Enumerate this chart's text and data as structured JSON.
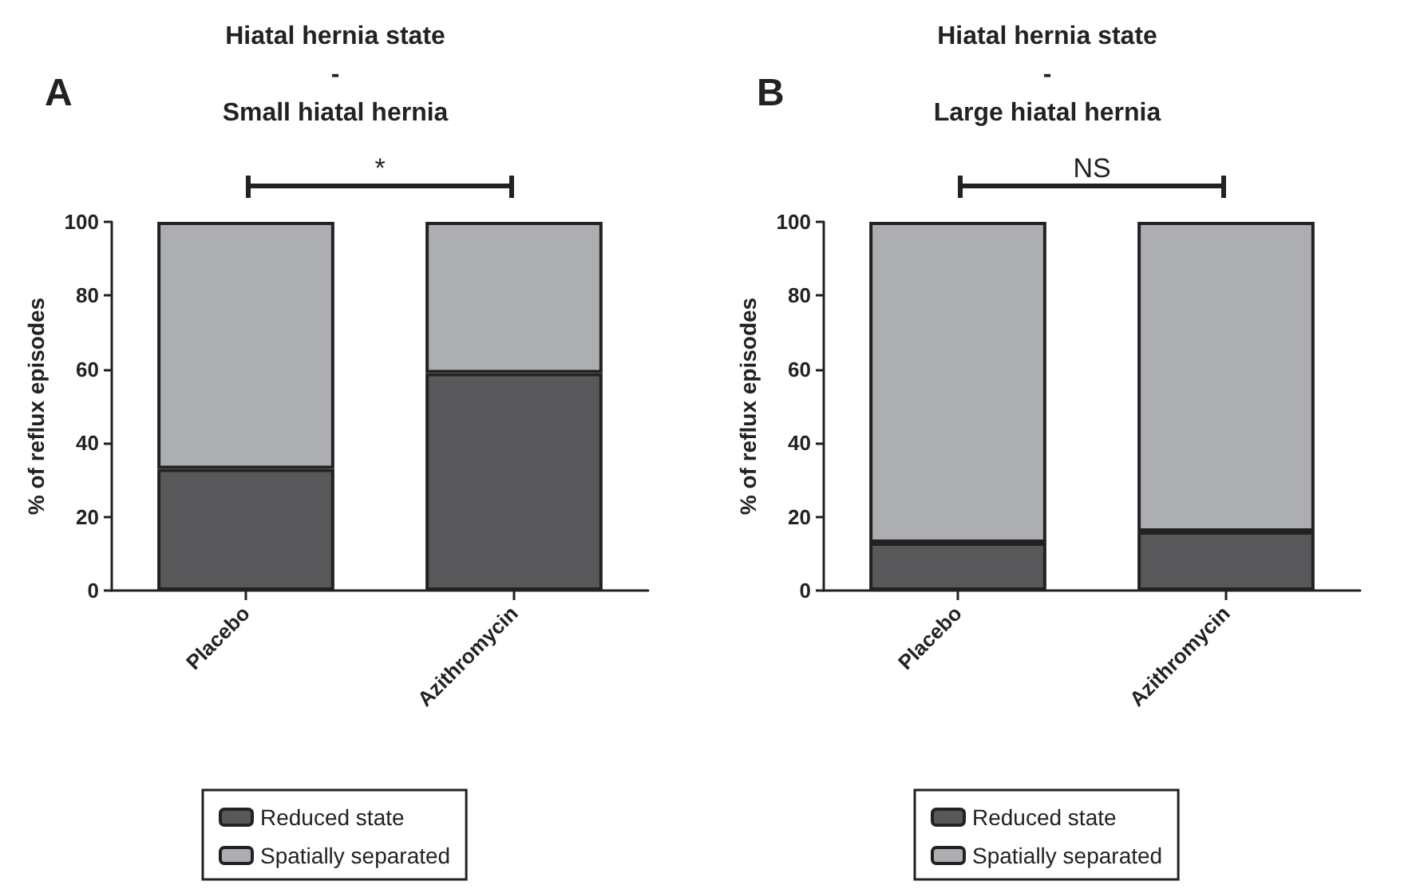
{
  "chart_data": [
    {
      "type": "bar",
      "title": "Hiatal hernia state\n-\nSmall hiatal hernia",
      "ylabel": "% of reflux episodes",
      "categories": [
        "Placebo",
        "Azithromycin"
      ],
      "stacked": true,
      "series": [
        {
          "name": "Reduced state",
          "color": "#58585a",
          "values": [
            33,
            59
          ]
        },
        {
          "name": "Spatially separated",
          "color": "#adaeb1",
          "values": [
            67,
            41
          ]
        }
      ],
      "ylim": [
        0,
        100
      ],
      "yticks": [
        0,
        20,
        40,
        60,
        80,
        100
      ],
      "grid": false,
      "legend": "bottom",
      "annotations": [
        "A",
        "*"
      ]
    },
    {
      "type": "bar",
      "title": "Hiatal hernia state\n-\nLarge hiatal hernia",
      "ylabel": "% of reflux episodes",
      "categories": [
        "Placebo",
        "Azithromycin"
      ],
      "stacked": true,
      "series": [
        {
          "name": "Reduced state",
          "color": "#58585a",
          "values": [
            13,
            16
          ]
        },
        {
          "name": "Spatially separated",
          "color": "#adaeb1",
          "values": [
            87,
            84
          ]
        }
      ],
      "ylim": [
        0,
        100
      ],
      "yticks": [
        0,
        20,
        40,
        60,
        80,
        100
      ],
      "grid": false,
      "legend": "bottom",
      "annotations": [
        "B",
        "NS"
      ]
    }
  ]
}
